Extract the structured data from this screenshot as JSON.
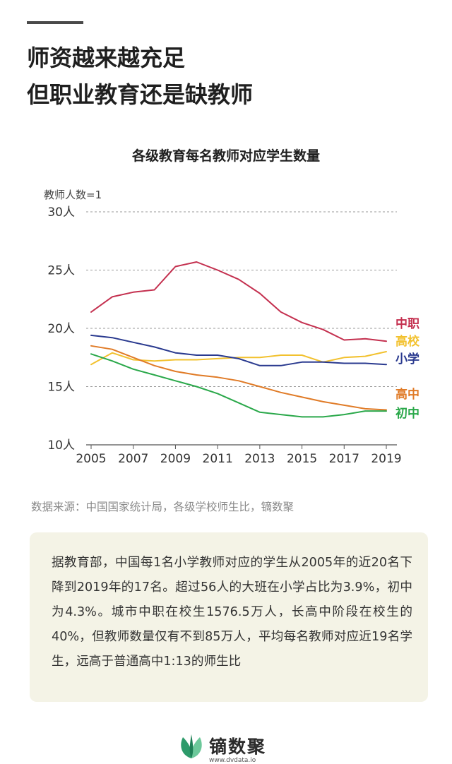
{
  "headline": {
    "line1": "师资越来越充足",
    "line2": "但职业教育还是缺教师"
  },
  "chart_data": {
    "type": "line",
    "title": "各级教育每名教师对应学生数量",
    "ylabel": "教师人数=1",
    "x": [
      2005,
      2006,
      2007,
      2008,
      2009,
      2010,
      2011,
      2012,
      2013,
      2014,
      2015,
      2016,
      2017,
      2018,
      2019
    ],
    "xticks": [
      "2005",
      "2007",
      "2009",
      "2011",
      "2013",
      "2015",
      "2017",
      "2019"
    ],
    "yticks": [
      "10人",
      "15人",
      "20人",
      "25人",
      "30人"
    ],
    "ylim": [
      10,
      30
    ],
    "grid": true,
    "series": [
      {
        "name": "中职",
        "color": "#c4304f",
        "values": [
          21.4,
          22.7,
          23.1,
          23.3,
          25.3,
          25.7,
          25.0,
          24.2,
          23.0,
          21.4,
          20.5,
          19.9,
          19.0,
          19.1,
          18.9
        ]
      },
      {
        "name": "高校",
        "color": "#f2c12e",
        "values": [
          16.9,
          17.9,
          17.3,
          17.2,
          17.3,
          17.3,
          17.4,
          17.5,
          17.5,
          17.7,
          17.7,
          17.1,
          17.5,
          17.6,
          18.0
        ]
      },
      {
        "name": "小学",
        "color": "#2a3a8f",
        "values": [
          19.4,
          19.2,
          18.8,
          18.4,
          17.9,
          17.7,
          17.7,
          17.4,
          16.8,
          16.8,
          17.1,
          17.1,
          17.0,
          17.0,
          16.9
        ]
      },
      {
        "name": "高中",
        "color": "#e07b27",
        "values": [
          18.5,
          18.2,
          17.5,
          16.8,
          16.3,
          16.0,
          15.8,
          15.5,
          15.0,
          14.5,
          14.1,
          13.7,
          13.4,
          13.1,
          13.0
        ]
      },
      {
        "name": "初中",
        "color": "#2aa84a",
        "values": [
          17.8,
          17.2,
          16.5,
          16.0,
          15.5,
          15.0,
          14.4,
          13.6,
          12.8,
          12.6,
          12.4,
          12.4,
          12.6,
          12.9,
          12.9
        ]
      }
    ]
  },
  "source": "数据来源：中国国家统计局，各级学校师生比，镝数聚",
  "note": "据教育部，中国每1名小学教师对应的学生从2005年的近20名下降到2019年的17名。超过56人的大班在小学占比为3.9%，初中为4.3%。城市中职在校生1576.5万人，长高中阶段在校生的40%，但教师数量仅有不到85万人，平均每名教师对应近19名学生，远高于普通高中1:13的师生比",
  "brand": {
    "name": "镝数聚",
    "url": "www.dvdata.io",
    "icon": "leaf-logo-icon",
    "colors": [
      "#2d9a6a",
      "#6cc89a"
    ]
  }
}
